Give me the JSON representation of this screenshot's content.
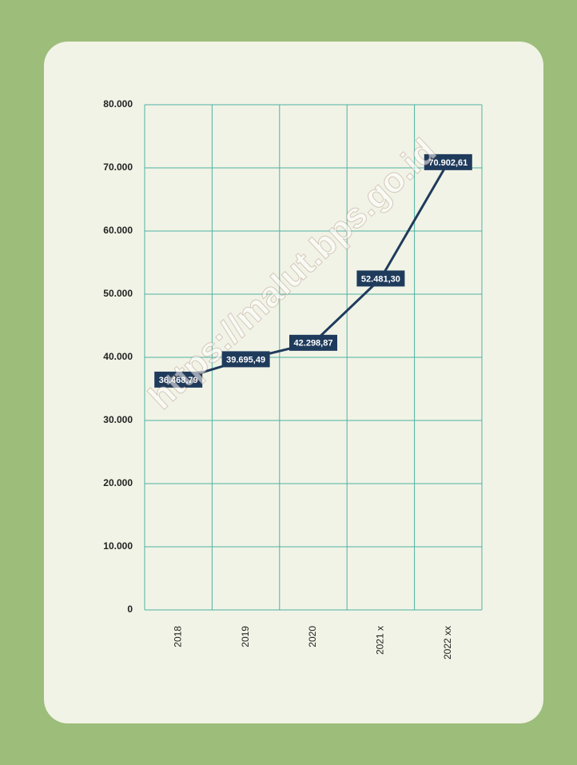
{
  "chart_data": {
    "type": "line",
    "categories": [
      "2018",
      "2019",
      "2020",
      "2021 x",
      "2022 xx"
    ],
    "values": [
      36468.79,
      39695.49,
      42298.87,
      52481.3,
      70902.61
    ],
    "value_labels": [
      "36.468,79",
      "39.695,49",
      "42.298,87",
      "52.481,30",
      "70.902,61"
    ],
    "color": "#1f3b5c",
    "ylim": [
      0,
      80000
    ],
    "yticks": [
      0,
      {
        "value": 10000,
        "label": "10.000"
      },
      {
        "value": 20000,
        "label": "20.000"
      },
      {
        "value": 30000,
        "label": "30.000"
      },
      {
        "value": 40000,
        "label": "40.000"
      },
      {
        "value": 50000,
        "label": "50.000"
      },
      {
        "value": 60000,
        "label": "60.000"
      },
      {
        "value": 70000,
        "label": "70.000"
      },
      {
        "value": 80000,
        "label": "80.000"
      }
    ],
    "grid": true,
    "watermark": "https://malut.bps.go.id"
  }
}
